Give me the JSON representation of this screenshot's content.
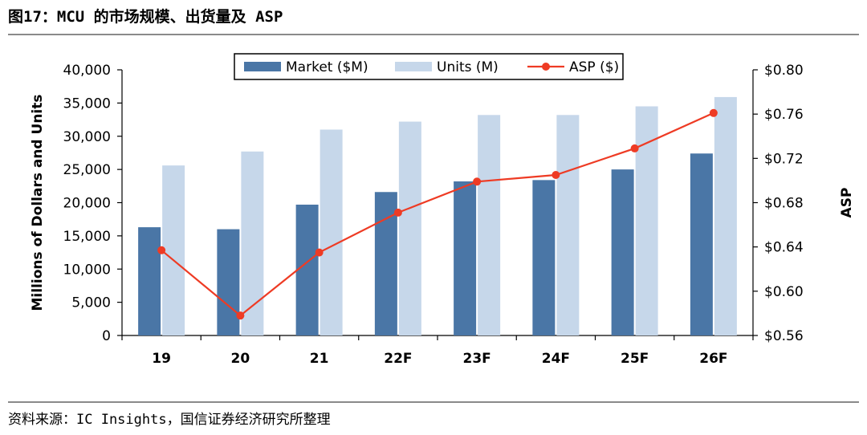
{
  "figure_title": "图17：MCU 的市场规模、出货量及 ASP",
  "source_text": "资料来源：IC Insights，国信证券经济研究所整理",
  "colors": {
    "market": "#4a76a6",
    "units": "#c6d7ea",
    "asp": "#ee3b24",
    "axis": "#000000"
  },
  "chart_data": {
    "type": "bar",
    "categories": [
      "19",
      "20",
      "21",
      "22F",
      "23F",
      "24F",
      "25F",
      "26F"
    ],
    "series": [
      {
        "name": "Market ($M)",
        "type": "bar",
        "axis": "left",
        "values": [
          16300,
          16000,
          19700,
          21600,
          23200,
          23400,
          25000,
          27400
        ]
      },
      {
        "name": "Units (M)",
        "type": "bar",
        "axis": "left",
        "values": [
          25600,
          27700,
          31000,
          32200,
          33200,
          33200,
          34500,
          35900
        ]
      },
      {
        "name": "ASP ($)",
        "type": "line",
        "axis": "right",
        "values": [
          0.637,
          0.578,
          0.635,
          0.671,
          0.699,
          0.705,
          0.729,
          0.761
        ]
      }
    ],
    "ylabel": "Millions of Dollars and Units",
    "y2label": "ASP",
    "ylim": [
      0,
      40000
    ],
    "y2lim": [
      0.56,
      0.8
    ],
    "yticks": [
      "0",
      "5,000",
      "10,000",
      "15,000",
      "20,000",
      "25,000",
      "30,000",
      "35,000",
      "40,000"
    ],
    "y2ticks": [
      "$0.56",
      "$0.60",
      "$0.64",
      "$0.68",
      "$0.72",
      "$0.76",
      "$0.80"
    ],
    "legend": [
      "Market ($M)",
      "Units (M)",
      "ASP ($)"
    ],
    "legend_position": "top-center",
    "grid": false
  }
}
